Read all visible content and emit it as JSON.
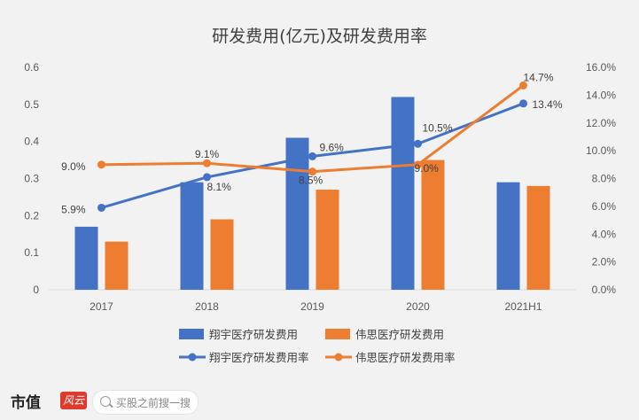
{
  "chart_data": {
    "type": "bar",
    "title": "研发费用(亿元)及研发费用率",
    "categories": [
      "2017",
      "2018",
      "2019",
      "2020",
      "2021H1"
    ],
    "y_left": {
      "ticks": [
        "0",
        "0.1",
        "0.2",
        "0.3",
        "0.4",
        "0.5",
        "0.6"
      ],
      "range": [
        0,
        0.6
      ]
    },
    "y_right": {
      "ticks": [
        "0.0%",
        "2.0%",
        "4.0%",
        "6.0%",
        "8.0%",
        "10.0%",
        "12.0%",
        "14.0%",
        "16.0%"
      ],
      "range": [
        0,
        16
      ]
    },
    "bar_series": [
      {
        "name": "翔宇医疗研发费用",
        "color": "#4472c4",
        "values": [
          0.17,
          0.29,
          0.41,
          0.52,
          0.29
        ]
      },
      {
        "name": "伟思医疗研发费用",
        "color": "#ed7d31",
        "values": [
          0.13,
          0.19,
          0.27,
          0.35,
          0.28
        ]
      }
    ],
    "line_series": [
      {
        "name": "翔宇医疗研发费用率",
        "color": "#4472c4",
        "values": [
          5.9,
          8.1,
          9.6,
          10.5,
          13.4
        ],
        "labels": [
          "5.9%",
          "8.1%",
          "9.6%",
          "10.5%",
          "13.4%"
        ]
      },
      {
        "name": "伟思医疗研发费用率",
        "color": "#ed7d31",
        "values": [
          9.0,
          9.1,
          8.5,
          9.0,
          14.7
        ],
        "labels": [
          "9.0%",
          "9.1%",
          "8.5%",
          "9.0%",
          "14.7%"
        ]
      }
    ],
    "legend_position": "bottom",
    "grid": false
  },
  "footer": {
    "brand": "市值",
    "brand_logo": "风云",
    "search_placeholder": "买股之前搜一搜"
  }
}
